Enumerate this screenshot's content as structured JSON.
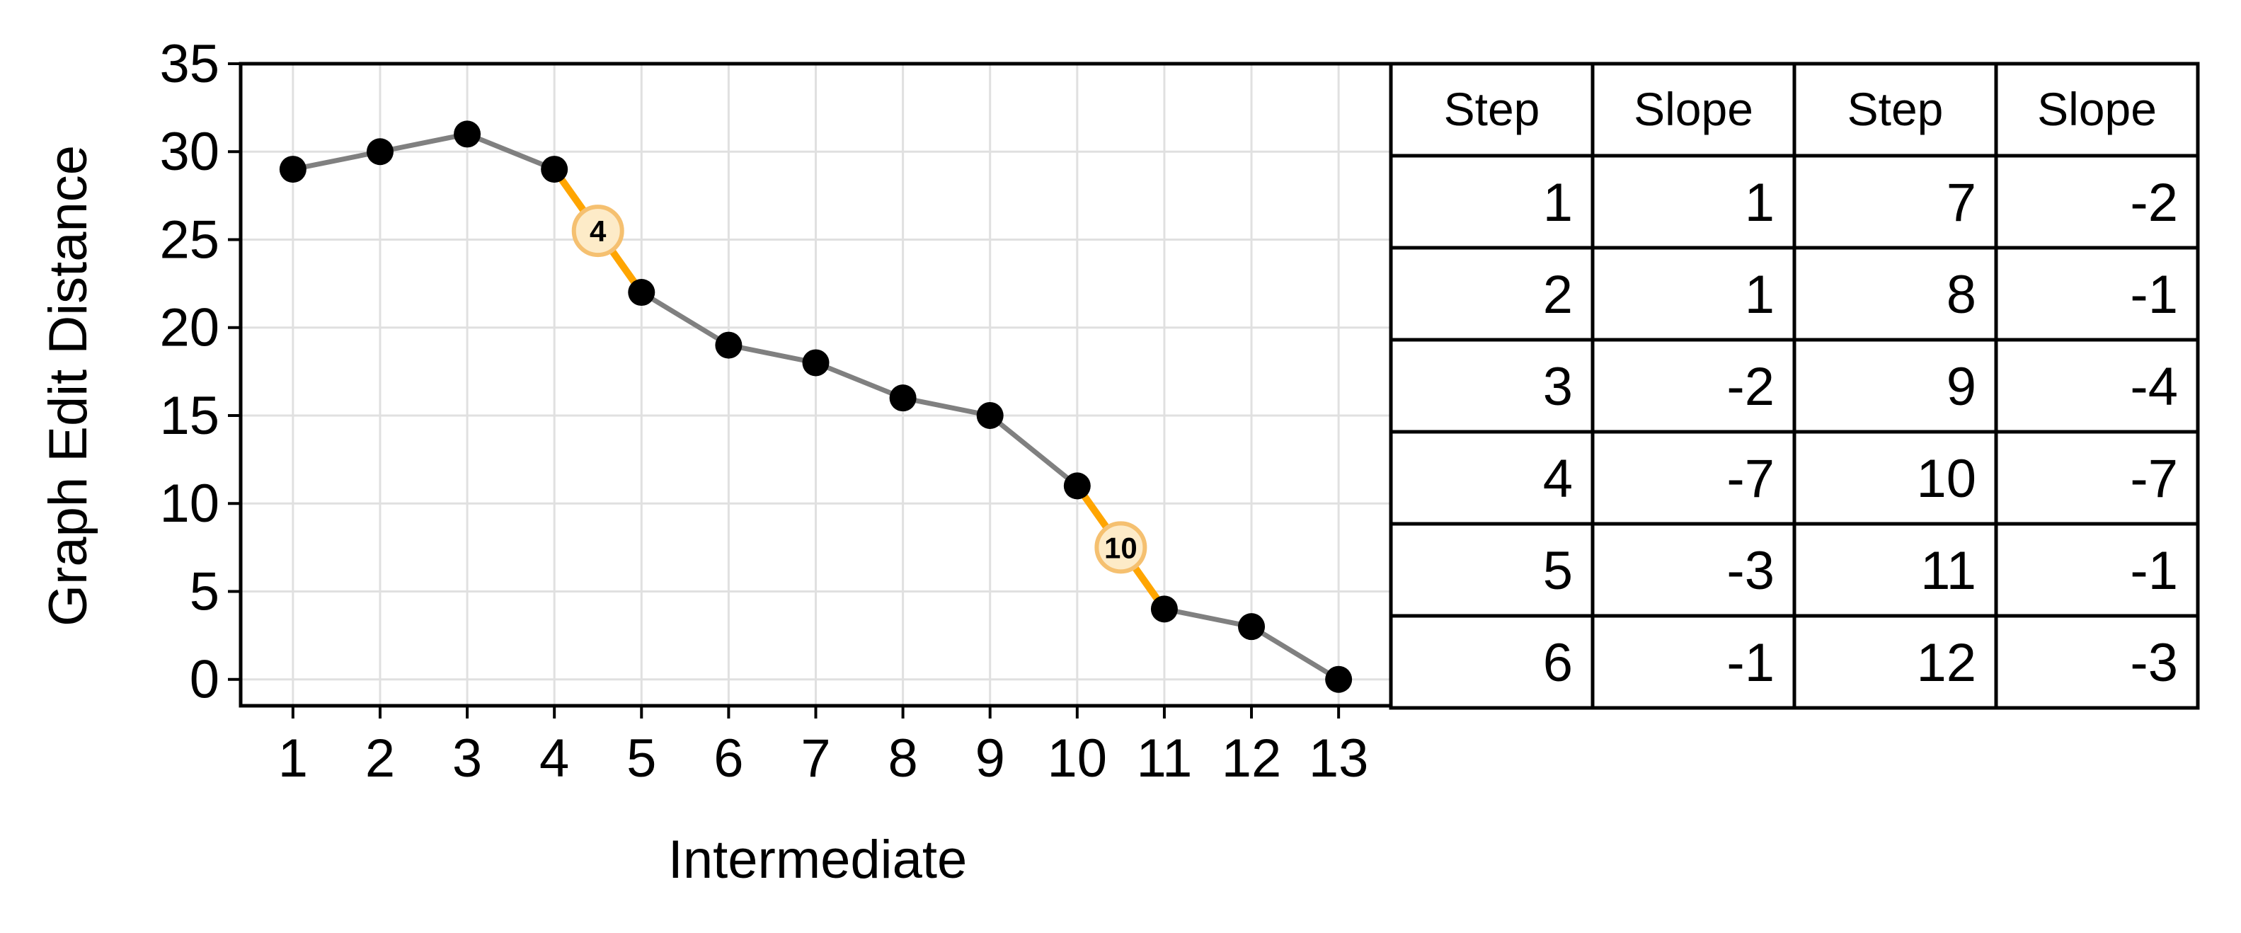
{
  "chart_data": {
    "type": "line",
    "xlabel": "Intermediate",
    "ylabel": "Graph Edit Distance",
    "xlim": [
      0.4,
      13.6
    ],
    "ylim": [
      -1.5,
      35
    ],
    "x_ticks": [
      1,
      2,
      3,
      4,
      5,
      6,
      7,
      8,
      9,
      10,
      11,
      12,
      13
    ],
    "y_ticks": [
      0,
      5,
      10,
      15,
      20,
      25,
      30,
      35
    ],
    "grid": true,
    "x": [
      1,
      2,
      3,
      4,
      5,
      6,
      7,
      8,
      9,
      10,
      11,
      12,
      13
    ],
    "y": [
      29,
      30,
      31,
      29,
      22,
      19,
      18,
      16,
      15,
      11,
      4,
      3,
      0
    ],
    "highlighted_steps": [
      {
        "step": "4",
        "x": 4.5,
        "y": 25.5
      },
      {
        "step": "10",
        "x": 10.5,
        "y": 7.5
      }
    ],
    "colors": {
      "line": "#808080",
      "highlight": "#ffa500",
      "marker": "#000000",
      "grid": "#e0e0e0",
      "badge_fill": "#fdebc8",
      "badge_stroke": "#f5c070"
    },
    "table": {
      "headers": [
        "Step",
        "Slope",
        "Step",
        "Slope"
      ],
      "rows": [
        [
          "1",
          "1",
          "7",
          "-2"
        ],
        [
          "2",
          "1",
          "8",
          "-1"
        ],
        [
          "3",
          "-2",
          "9",
          "-4"
        ],
        [
          "4",
          "-7",
          "10",
          "-7"
        ],
        [
          "5",
          "-3",
          "11",
          "-1"
        ],
        [
          "6",
          "-1",
          "12",
          "-3"
        ]
      ]
    }
  }
}
